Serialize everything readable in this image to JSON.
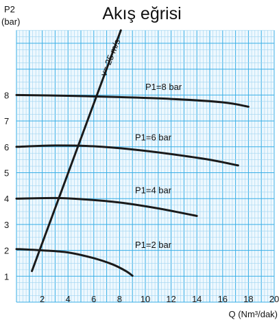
{
  "chart_data": {
    "type": "line",
    "title": "Akış eğrisi",
    "ylabel": "P2",
    "ylabel_unit": "(bar)",
    "xlabel": "Q (Nm³/dak)",
    "xlim": [
      0,
      20
    ],
    "ylim": [
      0,
      9
    ],
    "x_ticks": [
      2,
      4,
      6,
      8,
      10,
      12,
      14,
      16,
      18,
      20
    ],
    "y_ticks": [
      1,
      2,
      3,
      4,
      5,
      6,
      7,
      8
    ],
    "grid": true,
    "series": [
      {
        "name": "P1=8 bar",
        "x": [
          0,
          4,
          8,
          12,
          16,
          18
        ],
        "y": [
          8.0,
          7.97,
          7.92,
          7.85,
          7.72,
          7.55
        ]
      },
      {
        "name": "P1=6 bar",
        "x": [
          0,
          3,
          6,
          9,
          12,
          15,
          17.2
        ],
        "y": [
          6.0,
          6.05,
          6.02,
          5.9,
          5.72,
          5.5,
          5.28
        ]
      },
      {
        "name": "P1=4 bar",
        "x": [
          0,
          3,
          5,
          8,
          11,
          14
        ],
        "y": [
          4.0,
          4.02,
          3.98,
          3.85,
          3.62,
          3.33
        ]
      },
      {
        "name": "P1=2 bar",
        "x": [
          0,
          2,
          4,
          6,
          7.5,
          8.5,
          9
        ],
        "y": [
          2.05,
          2.0,
          1.92,
          1.7,
          1.45,
          1.2,
          1.02
        ]
      },
      {
        "name": "v= 25 m/s",
        "x": [
          1.2,
          2.1,
          3.8,
          5.2,
          6.7,
          8.1
        ],
        "y": [
          1.2,
          2.0,
          4.0,
          6.0,
          8.0,
          10.5
        ]
      }
    ],
    "annotations": [
      {
        "text": "P1=8 bar",
        "x": 10,
        "y": 8.2
      },
      {
        "text": "P1=6 bar",
        "x": 9.2,
        "y": 6.25
      },
      {
        "text": "P1=4 bar",
        "x": 9.2,
        "y": 4.2
      },
      {
        "text": "P1=2 bar",
        "x": 9.2,
        "y": 2.1
      },
      {
        "text": "v= 25 m/s",
        "x": 7.5,
        "y": 9.4,
        "rotated": true
      }
    ]
  }
}
